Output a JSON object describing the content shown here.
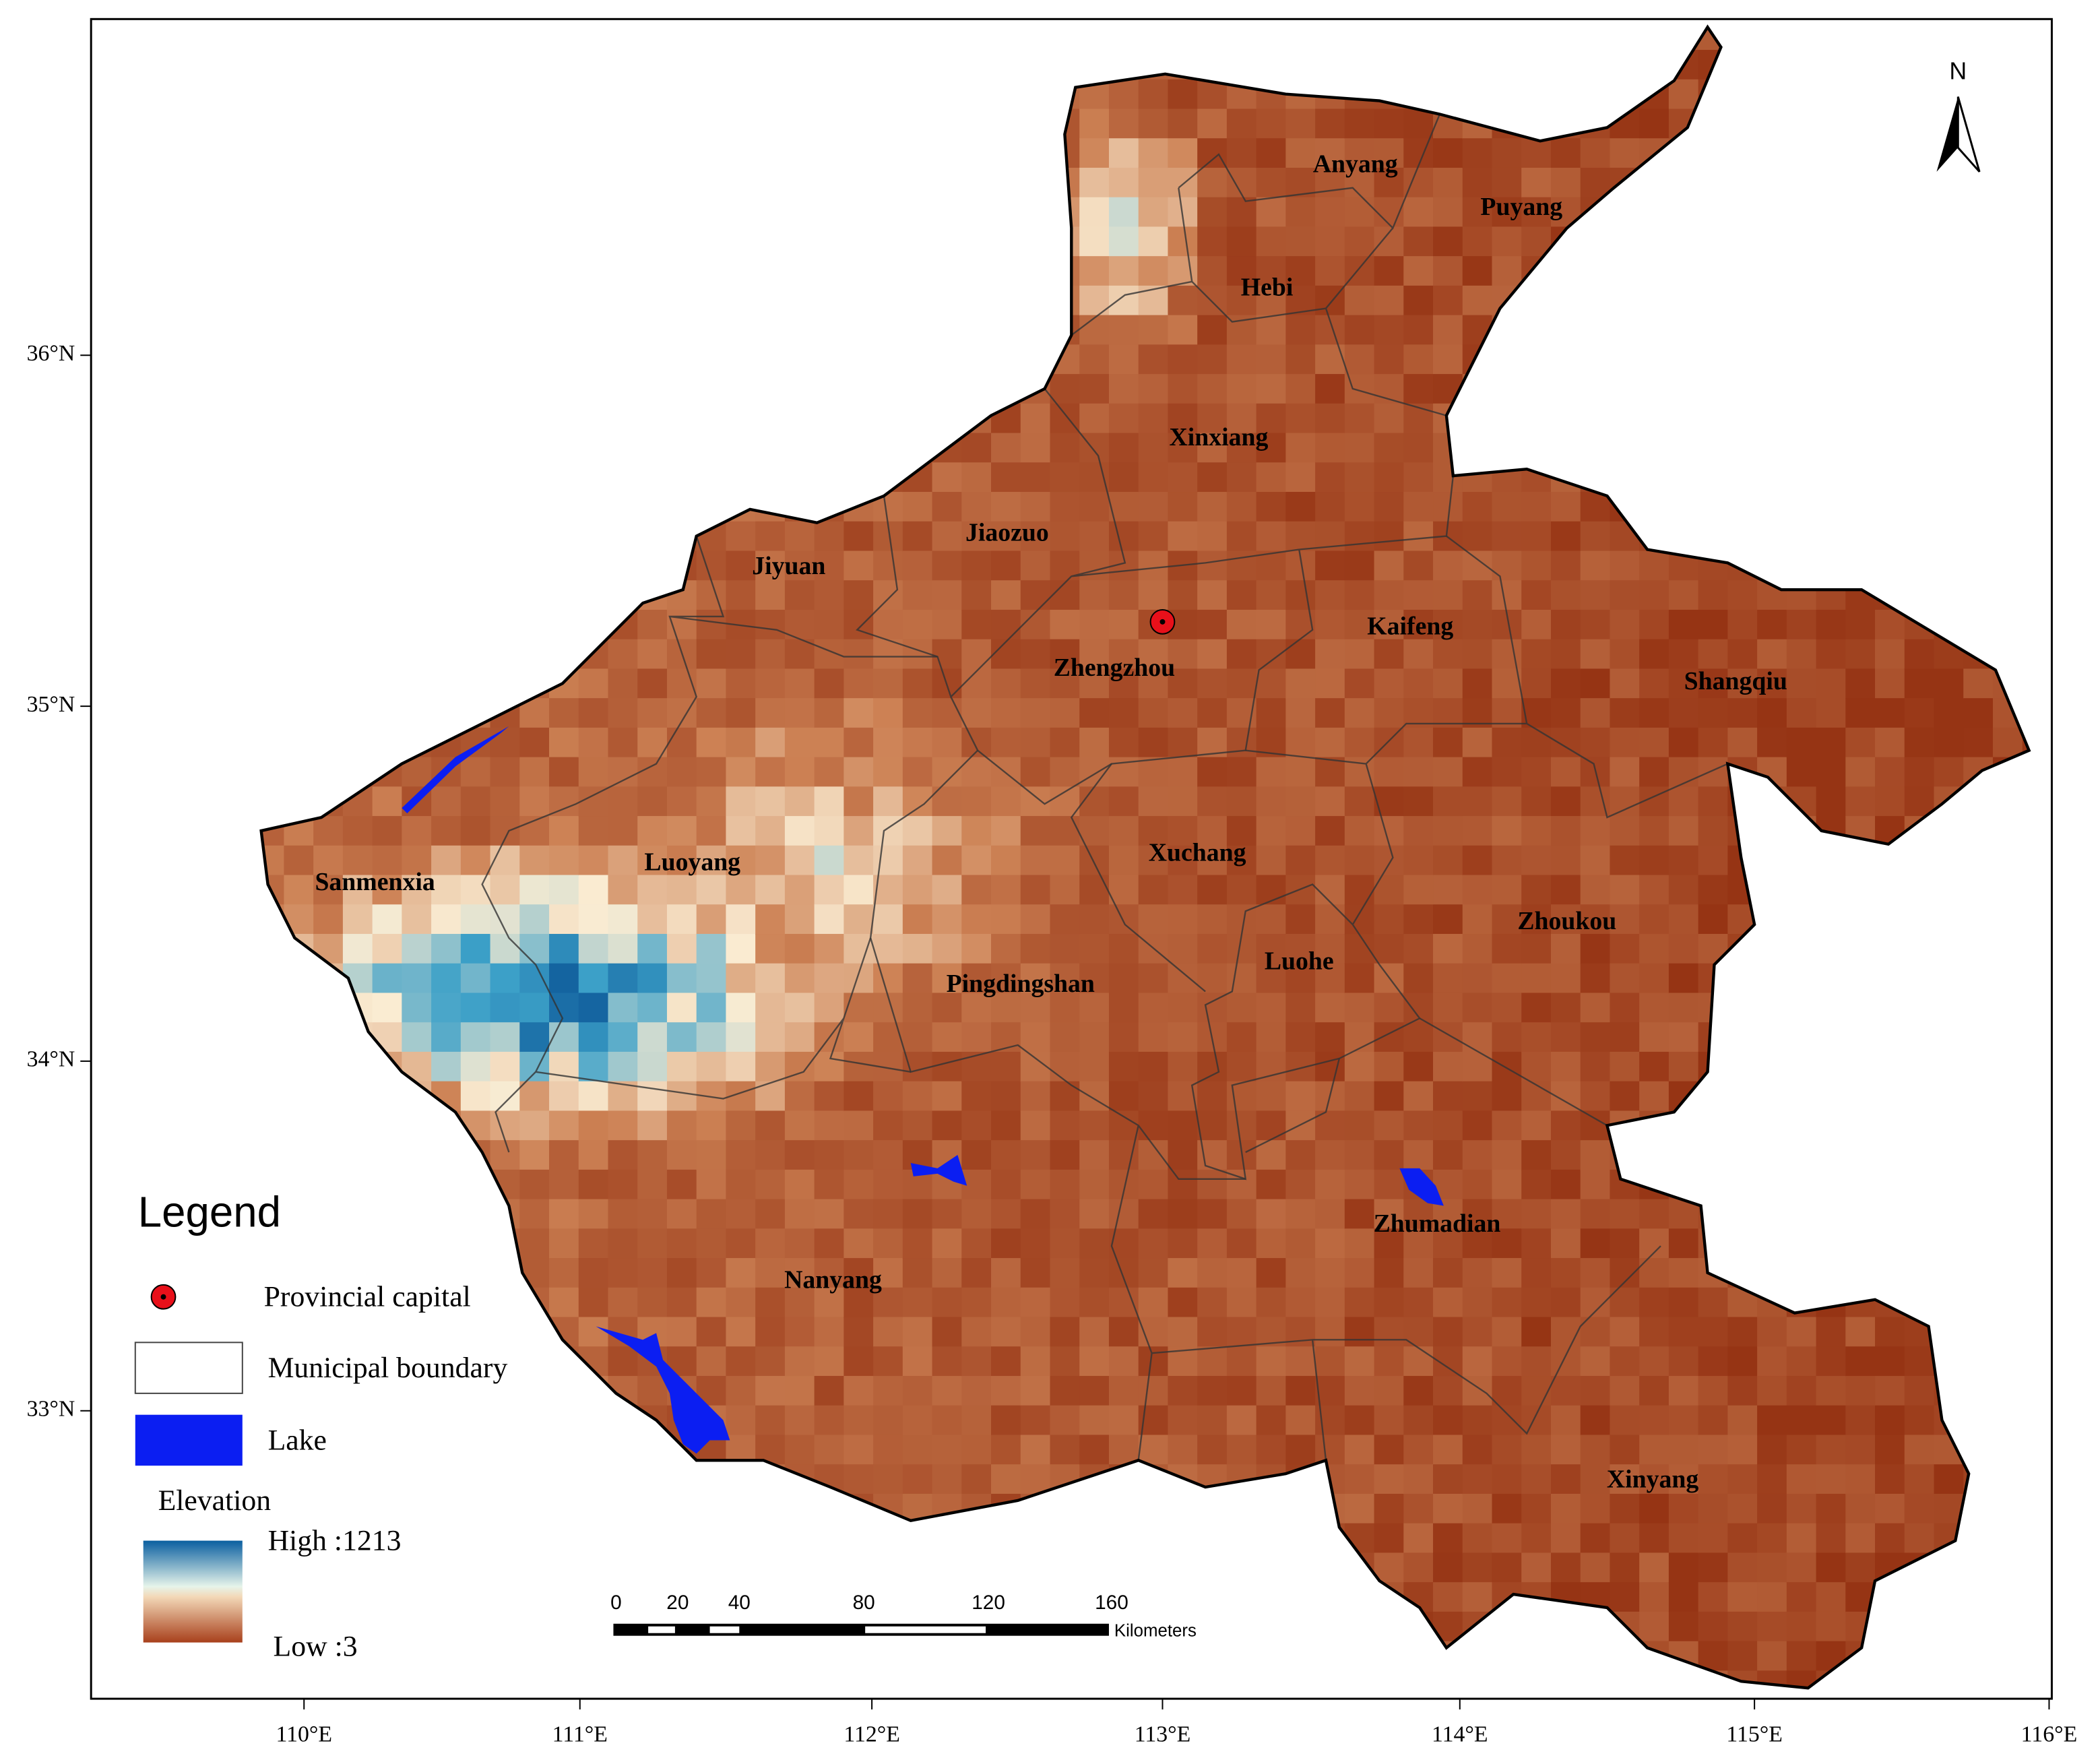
{
  "map": {
    "x_axis": [
      "110°E",
      "111°E",
      "112°E",
      "113°E",
      "114°E",
      "115°E",
      "116°E"
    ],
    "y_axis": [
      "36°N",
      "35°N",
      "34°N",
      "33°N"
    ],
    "north": "N",
    "regions": [
      "Anyang",
      "Puyang",
      "Hebi",
      "Xinxiang",
      "Jiaozuo",
      "Jiyuan",
      "Zhengzhou",
      "Kaifeng",
      "Shangqiu",
      "Sanmenxia",
      "Luoyang",
      "Xuchang",
      "Zhoukou",
      "Luohe",
      "Pingdingshan",
      "Nanyang",
      "Zhumadian",
      "Xinyang"
    ],
    "legend": {
      "title": "Legend",
      "items": [
        "Provincial capital",
        "Municipal boundary",
        "Lake"
      ],
      "elevation": {
        "title": "Elevation",
        "high": "High :1213",
        "low": "Low :3"
      }
    },
    "scale_bar": {
      "labels": [
        "0",
        "20",
        "40",
        "80",
        "120",
        "160"
      ],
      "unit": "Kilometers"
    }
  }
}
